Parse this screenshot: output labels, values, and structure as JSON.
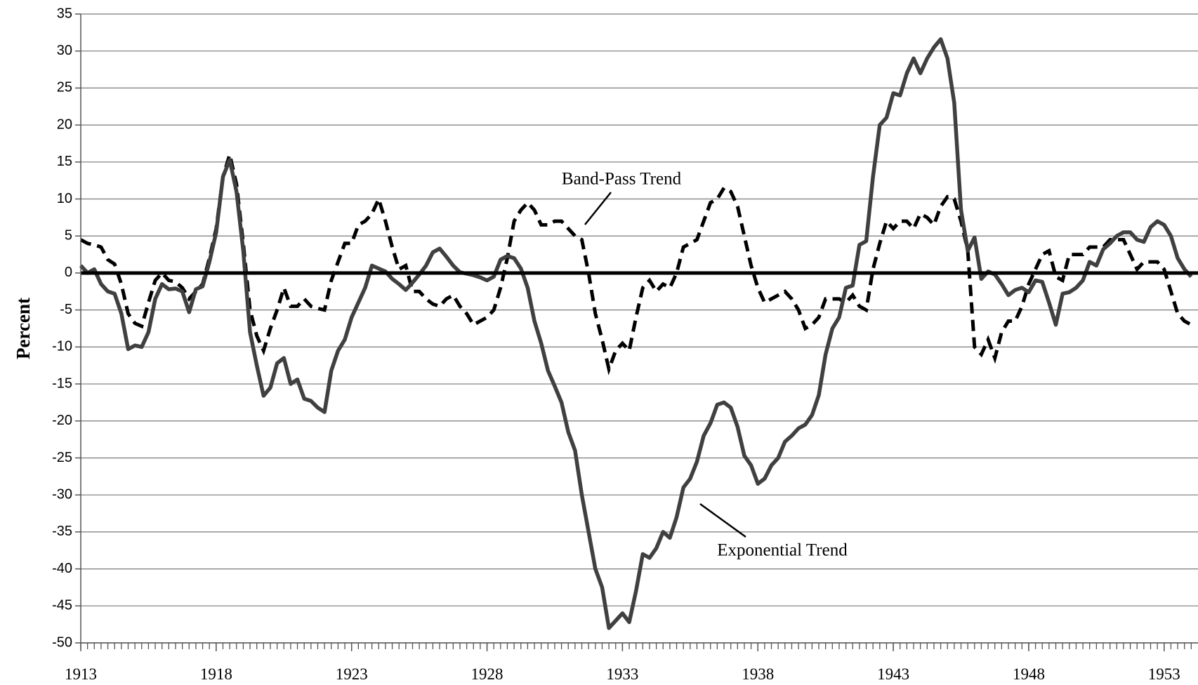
{
  "chart_data": {
    "type": "line",
    "y_label": "Percent",
    "xlim": [
      1913,
      1954.25
    ],
    "ylim": [
      -50,
      35
    ],
    "xticks": [
      1913,
      1918,
      1923,
      1928,
      1933,
      1938,
      1943,
      1948,
      1953
    ],
    "yticks": [
      -50,
      -45,
      -40,
      -35,
      -30,
      -25,
      -20,
      -15,
      -10,
      -5,
      0,
      5,
      10,
      15,
      20,
      25,
      30,
      35
    ],
    "grid": true,
    "x": [
      1913,
      1913.25,
      1913.5,
      1913.75,
      1914,
      1914.25,
      1914.5,
      1914.75,
      1915,
      1915.25,
      1915.5,
      1915.75,
      1916,
      1916.25,
      1916.5,
      1916.75,
      1917,
      1917.25,
      1917.5,
      1917.75,
      1918,
      1918.25,
      1918.5,
      1918.75,
      1919,
      1919.25,
      1919.5,
      1919.75,
      1920,
      1920.25,
      1920.5,
      1920.75,
      1921,
      1921.25,
      1921.5,
      1921.75,
      1922,
      1922.25,
      1922.5,
      1922.75,
      1923,
      1923.25,
      1923.5,
      1923.75,
      1924,
      1924.25,
      1924.5,
      1924.75,
      1925,
      1925.25,
      1925.5,
      1925.75,
      1926,
      1926.25,
      1926.5,
      1926.75,
      1927,
      1927.25,
      1927.5,
      1927.75,
      1928,
      1928.25,
      1928.5,
      1928.75,
      1929,
      1929.25,
      1929.5,
      1929.75,
      1930,
      1930.25,
      1930.5,
      1930.75,
      1931,
      1931.25,
      1931.5,
      1931.75,
      1932,
      1932.25,
      1932.5,
      1932.75,
      1933,
      1933.25,
      1933.5,
      1933.75,
      1934,
      1934.25,
      1934.5,
      1934.75,
      1935,
      1935.25,
      1935.5,
      1935.75,
      1936,
      1936.25,
      1936.5,
      1936.75,
      1937,
      1937.25,
      1937.5,
      1937.75,
      1938,
      1938.25,
      1938.5,
      1938.75,
      1939,
      1939.25,
      1939.5,
      1939.75,
      1940,
      1940.25,
      1940.5,
      1940.75,
      1941,
      1941.25,
      1941.5,
      1941.75,
      1942,
      1942.25,
      1942.5,
      1942.75,
      1943,
      1943.25,
      1943.5,
      1943.75,
      1944,
      1944.25,
      1944.5,
      1944.75,
      1945,
      1945.25,
      1945.5,
      1945.75,
      1946,
      1946.25,
      1946.5,
      1946.75,
      1947,
      1947.25,
      1947.5,
      1947.75,
      1948,
      1948.25,
      1948.5,
      1948.75,
      1949,
      1949.25,
      1949.5,
      1949.75,
      1950,
      1950.25,
      1950.5,
      1950.75,
      1951,
      1951.25,
      1951.5,
      1951.75,
      1952,
      1952.25,
      1952.5,
      1952.75,
      1953,
      1953.25,
      1953.5,
      1953.75,
      1954
    ],
    "series": [
      {
        "name": "Exponential Trend",
        "color": "#404040",
        "dash": false,
        "values": [
          1,
          0,
          0.5,
          -1.5,
          -2.5,
          -2.8,
          -5.5,
          -10.3,
          -9.8,
          -10,
          -8,
          -3.5,
          -1.5,
          -2.2,
          -2.1,
          -2.5,
          -5.3,
          -2.2,
          -1.8,
          1.5,
          5.5,
          13,
          15.3,
          11,
          3,
          -8,
          -12.5,
          -16.6,
          -15.5,
          -12.2,
          -11.5,
          -15,
          -14.4,
          -17,
          -17.3,
          -18.2,
          -18.8,
          -13.2,
          -10.5,
          -9,
          -6,
          -4,
          -2,
          1,
          0.6,
          0.2,
          -0.8,
          -1.5,
          -2.3,
          -1.3,
          -0.2,
          1,
          2.8,
          3.3,
          2.2,
          1,
          0.1,
          -0.1,
          -0.3,
          -0.6,
          -1,
          -0.5,
          1.8,
          2.3,
          2,
          0.6,
          -2,
          -6.5,
          -9.5,
          -13.2,
          -15.3,
          -17.5,
          -21.5,
          -24,
          -30,
          -35,
          -40,
          -42.5,
          -48,
          -47,
          -46,
          -47.2,
          -43,
          -38,
          -38.5,
          -37.2,
          -35,
          -35.8,
          -33,
          -29,
          -27.8,
          -25.5,
          -22,
          -20.3,
          -17.8,
          -17.5,
          -18.2,
          -20.8,
          -24.7,
          -26,
          -28.5,
          -27.8,
          -26,
          -25,
          -22.8,
          -22,
          -21,
          -20.5,
          -19.2,
          -16.5,
          -11,
          -7.5,
          -6,
          -2,
          -1.7,
          3.8,
          4.3,
          13,
          20,
          21,
          24.3,
          24,
          27,
          29,
          27,
          29,
          30.5,
          31.6,
          29,
          23,
          8.5,
          3,
          4.8,
          -0.8,
          0.2,
          -0.2,
          -1.5,
          -3,
          -2.3,
          -2,
          -2.6,
          -1,
          -1.2,
          -4,
          -7,
          -2.8,
          -2.6,
          -2,
          -1,
          1.5,
          1,
          3.2,
          4,
          5,
          5.5,
          5.5,
          4.5,
          4.2,
          6.2,
          7,
          6.5,
          5,
          2,
          0.5,
          -0.5
        ]
      },
      {
        "name": "Band-Pass Trend",
        "color": "#000000",
        "dash": true,
        "values": [
          4.5,
          4,
          3.8,
          3.5,
          1.8,
          1.2,
          -1.5,
          -5.5,
          -6.8,
          -7.2,
          -4,
          -1,
          0,
          -1,
          -1.2,
          -2,
          -3.5,
          -2.5,
          -1.5,
          2,
          6,
          13,
          16,
          12,
          4,
          -5,
          -8.5,
          -10.5,
          -7.5,
          -5,
          -2,
          -4.5,
          -4.5,
          -3.5,
          -4.5,
          -4.8,
          -5,
          -1,
          1.5,
          4,
          4,
          6.5,
          7,
          8,
          10,
          7,
          3.5,
          0.5,
          1,
          -2.5,
          -2.5,
          -3.5,
          -4.2,
          -4.5,
          -3.5,
          -3,
          -4.5,
          -5.5,
          -7,
          -6.5,
          -6,
          -5,
          -2,
          2,
          7,
          8.5,
          9.5,
          8.5,
          6.5,
          6.5,
          7,
          7,
          6,
          5,
          4.5,
          0,
          -5.5,
          -9,
          -13,
          -10.5,
          -9.5,
          -10.5,
          -6,
          -2,
          -1,
          -2.5,
          -1.5,
          -2,
          0,
          3.5,
          4,
          4.5,
          7,
          9.5,
          10,
          11.5,
          11,
          9,
          5,
          1,
          -2,
          -4,
          -3.5,
          -3,
          -2.5,
          -3.5,
          -5,
          -7.5,
          -7,
          -6,
          -3.5,
          -3.5,
          -3.5,
          -4,
          -3,
          -4.5,
          -5,
          0.5,
          4,
          7,
          6,
          7,
          7,
          6,
          8,
          7.5,
          6.5,
          9,
          10.3,
          10,
          7,
          3,
          -10,
          -11,
          -9,
          -11.5,
          -8,
          -6.5,
          -6.5,
          -4.5,
          -1.5,
          0.5,
          2.5,
          3,
          -0.5,
          -1,
          2.5,
          2.5,
          2.5,
          3.5,
          3.5,
          3.5,
          4.5,
          4.5,
          4.5,
          2.5,
          0.5,
          1.5,
          1.5,
          1.5,
          0.5,
          -2.5,
          -5.5,
          -6.5,
          -7
        ]
      }
    ]
  }
}
